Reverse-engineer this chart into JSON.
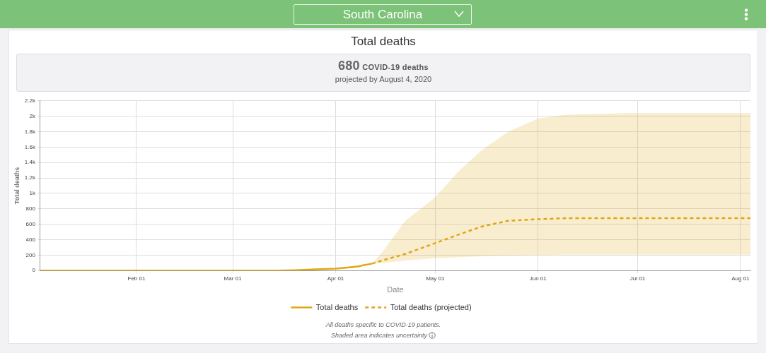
{
  "chart_data": {
    "type": "line",
    "title": "Total deaths",
    "xlabel": "Date",
    "ylabel": "Total deaths",
    "annotations": [
      "South Carolina",
      "680",
      "COVID-19 deaths",
      "projected by August 4, 2020",
      "All deaths specific to COVID-19 patients.",
      "Shaded area indicates uncertainty"
    ],
    "series": [
      {
        "name": "Total deaths",
        "color": "#e0a614",
        "line_style": "solid",
        "x": [
          "2020-01-03",
          "2020-03-10",
          "2020-03-15",
          "2020-03-20",
          "2020-03-26",
          "2020-04-01",
          "2020-04-05",
          "2020-04-08",
          "2020-04-09",
          "2020-04-12"
        ],
        "values": [
          0,
          0,
          0,
          5,
          15,
          25,
          40,
          55,
          65,
          90
        ]
      },
      {
        "name": "Total deaths (projected)",
        "color": "#e0a614",
        "line_style": "dashed",
        "x": [
          "2020-04-12",
          "2020-04-15",
          "2020-04-22",
          "2020-05-01",
          "2020-05-08",
          "2020-05-15",
          "2020-05-23",
          "2020-06-01",
          "2020-06-10",
          "2020-06-27",
          "2020-08-04"
        ],
        "values": [
          90,
          130,
          215,
          355,
          465,
          570,
          645,
          665,
          680,
          680,
          680
        ],
        "lower": [
          90,
          95,
          130,
          160,
          170,
          185,
          195,
          200,
          205,
          205,
          205
        ],
        "upper": [
          90,
          235,
          645,
          950,
          1285,
          1560,
          1800,
          1970,
          2020,
          2040,
          2040
        ]
      }
    ],
    "xlim": [
      "2020-01-03",
      "2020-08-04"
    ],
    "xticks": [
      {
        "value": "2020-02-01",
        "label": "Feb 01"
      },
      {
        "value": "2020-03-01",
        "label": "Mar 01"
      },
      {
        "value": "2020-04-01",
        "label": "Apr 01"
      },
      {
        "value": "2020-05-01",
        "label": "May 01"
      },
      {
        "value": "2020-06-01",
        "label": "Jun 01"
      },
      {
        "value": "2020-07-01",
        "label": "Jul 01"
      },
      {
        "value": "2020-08-01",
        "label": "Aug 01"
      }
    ],
    "ylim": [
      0,
      2200
    ],
    "yticks": [
      0,
      200,
      400,
      600,
      800,
      {
        "value": 1000,
        "label": "1k"
      },
      {
        "value": 1200,
        "label": "1.2k"
      },
      {
        "value": 1400,
        "label": "1.4k"
      },
      {
        "value": 1600,
        "label": "1.6k"
      },
      {
        "value": 1800,
        "label": "1.8k"
      },
      {
        "value": 2000,
        "label": "2k"
      },
      {
        "value": 2200,
        "label": "2.2k"
      }
    ],
    "grid": true,
    "legend": "bottom"
  }
}
